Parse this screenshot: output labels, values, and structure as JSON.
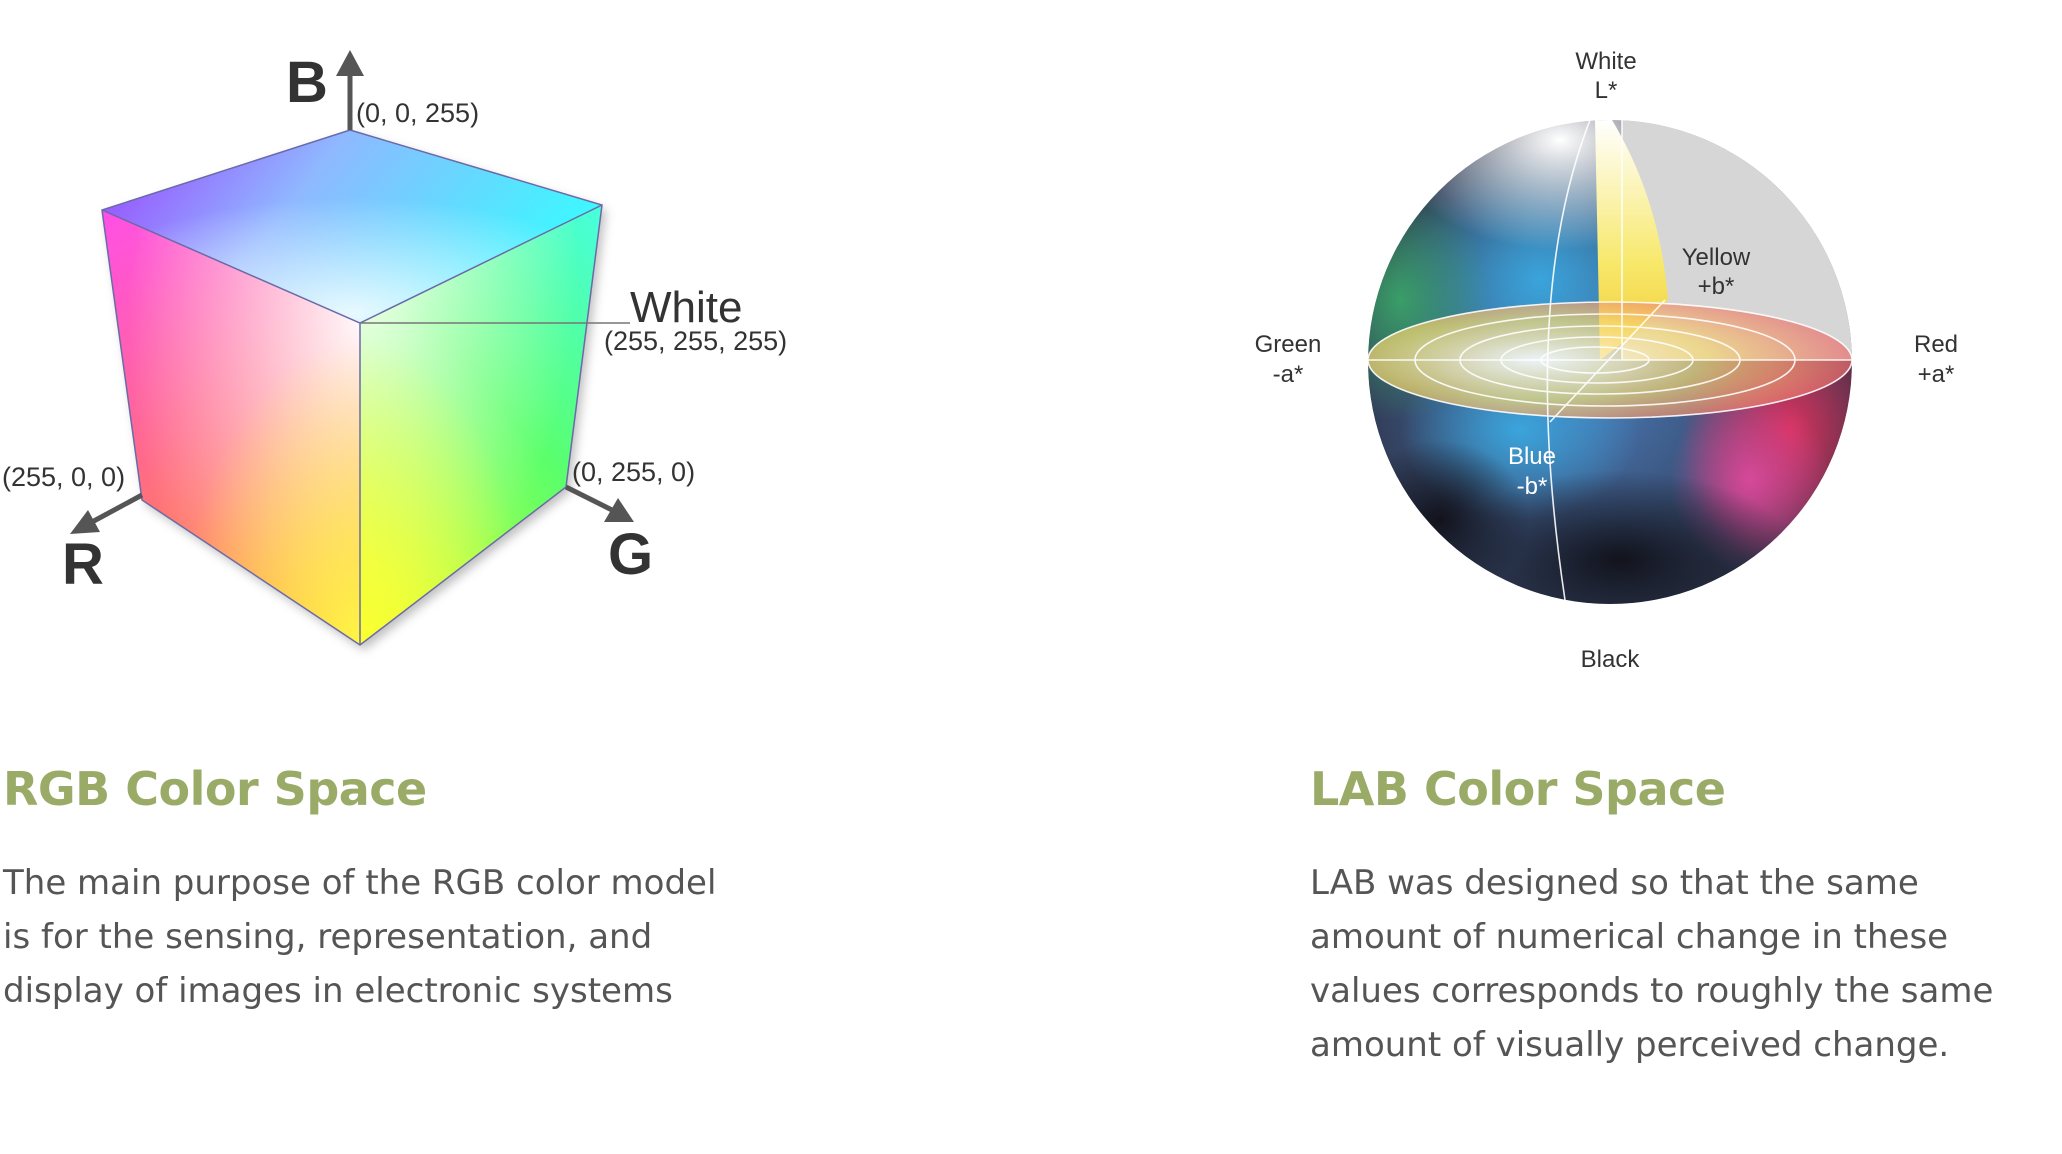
{
  "colors": {
    "accent": "#9aab67",
    "body_text": "#555555",
    "label_text": "#333333",
    "axis_gray": "#555555"
  },
  "rgb": {
    "heading": "RGB Color Space",
    "description": [
      "The main purpose of the RGB color model",
      "is for the sensing, representation, and",
      "display of images in electronic systems"
    ],
    "cube": {
      "axis_b": "B",
      "axis_r": "R",
      "axis_g": "G",
      "blue_value": "(0, 0, 255)",
      "white_label": "White",
      "white_value": "(255, 255, 255)",
      "red_value": "(255, 0, 0)",
      "green_value": "(0, 255, 0)"
    }
  },
  "lab": {
    "heading": "LAB Color Space",
    "description": [
      "LAB was designed so that the same",
      "amount of numerical change in these",
      "values corresponds to roughly the same",
      "amount of visually perceived change."
    ],
    "sphere": {
      "white_label": "White",
      "white_axis": "L*",
      "yellow_label": "Yellow",
      "yellow_axis": "+b*",
      "green_label": "Green",
      "green_axis": "-a*",
      "red_label": "Red",
      "red_axis": "+a*",
      "blue_label": "Blue",
      "blue_axis": "-b*",
      "black_label": "Black"
    }
  }
}
